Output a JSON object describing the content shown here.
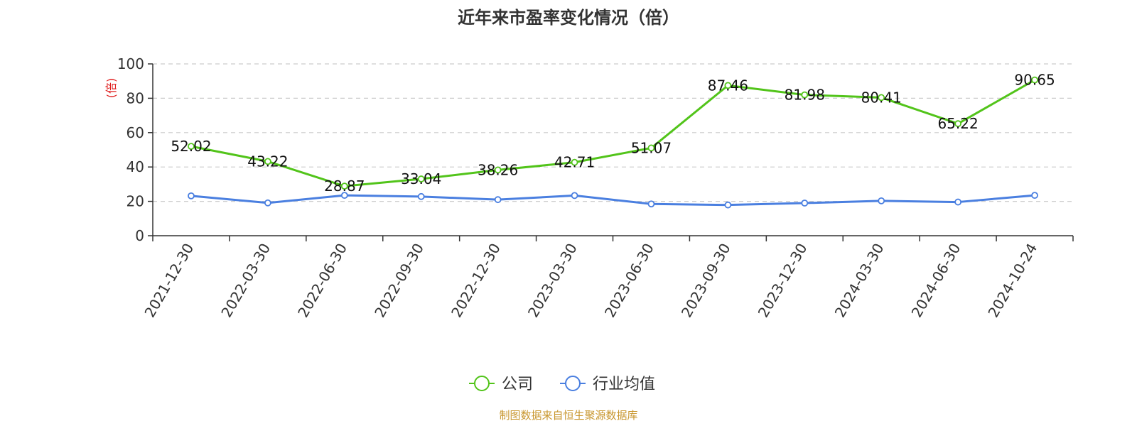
{
  "chart_data": {
    "type": "line",
    "title": "近年来市盈率变化情况（倍）",
    "ylabel": "(倍)",
    "ylim": [
      0,
      100
    ],
    "yticks": [
      0,
      20,
      40,
      60,
      80,
      100
    ],
    "grid": true,
    "legend_position": "bottom",
    "categories": [
      "2021-12-30",
      "2022-03-30",
      "2022-06-30",
      "2022-09-30",
      "2022-12-30",
      "2023-03-30",
      "2023-06-30",
      "2023-09-30",
      "2023-12-30",
      "2024-03-30",
      "2024-06-30",
      "2024-10-24"
    ],
    "series": [
      {
        "name": "公司",
        "color": "#52c41a",
        "values": [
          52.02,
          43.22,
          28.87,
          33.04,
          38.26,
          42.71,
          51.07,
          87.46,
          81.98,
          80.41,
          65.22,
          90.65
        ],
        "labels": [
          "52.02",
          "43.22",
          "28.87",
          "33.04",
          "38.26",
          "42.71",
          "51.07",
          "87.46",
          "81.98",
          "80.41",
          "65.22",
          "90.65"
        ]
      },
      {
        "name": "行业均值",
        "color": "#4a7fe0",
        "values": [
          23.2,
          19.1,
          23.5,
          22.8,
          21.0,
          23.4,
          18.5,
          17.9,
          19.0,
          20.3,
          19.6,
          23.5
        ]
      }
    ],
    "source": "制图数据来自恒生聚源数据库",
    "colors": {
      "ylabel": "#e02020",
      "source": "#c8962e",
      "grid": "#cccccc",
      "axis": "#333333"
    }
  }
}
